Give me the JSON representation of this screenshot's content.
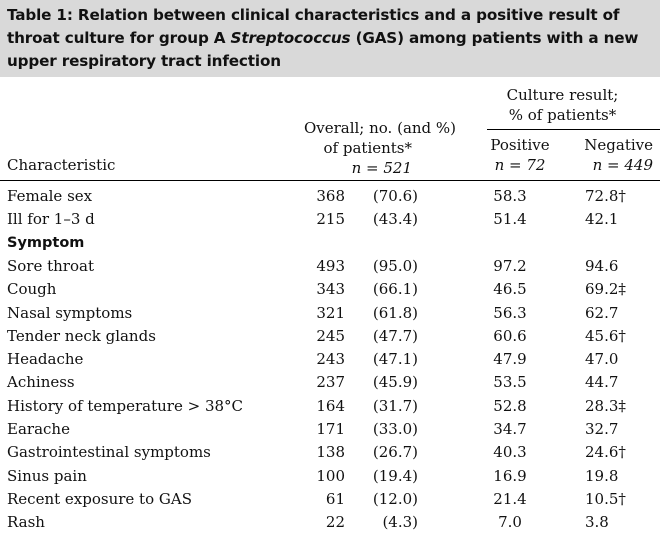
{
  "caption": {
    "part1": "Table 1: Relation between clinical characteristics and a positive result of throat culture for group A ",
    "italic": "Streptococcus",
    "part2": " (GAS) among patients with a new upper respiratory tract infection"
  },
  "header": {
    "characteristic": "Characteristic",
    "overall_line1": "Overall; no. (and %)",
    "overall_line2": "of patients*",
    "overall_n": "n = 521",
    "culture_line1": "Culture result;",
    "culture_line2": "% of patients*",
    "positive": "Positive",
    "positive_n": "n = 72",
    "negative": "Negative",
    "negative_n": "n = 449"
  },
  "rows": [
    {
      "label": "Female sex",
      "n": "368",
      "pct": "(70.6)",
      "pos": "58.3",
      "neg": "72.8†",
      "bold": false
    },
    {
      "label": "Ill for 1–3 d",
      "n": "215",
      "pct": "(43.4)",
      "pos": "51.4",
      "neg": "42.1",
      "bold": false
    },
    {
      "label": "Symptom",
      "n": "",
      "pct": "",
      "pos": "",
      "neg": "",
      "bold": true
    },
    {
      "label": "Sore throat",
      "n": "493",
      "pct": "(95.0)",
      "pos": "97.2",
      "neg": "94.6",
      "bold": false
    },
    {
      "label": "Cough",
      "n": "343",
      "pct": "(66.1)",
      "pos": "46.5",
      "neg": "69.2‡",
      "bold": false
    },
    {
      "label": "Nasal symptoms",
      "n": "321",
      "pct": "(61.8)",
      "pos": "56.3",
      "neg": "62.7",
      "bold": false
    },
    {
      "label": "Tender neck glands",
      "n": "245",
      "pct": "(47.7)",
      "pos": "60.6",
      "neg": "45.6†",
      "bold": false
    },
    {
      "label": "Headache",
      "n": "243",
      "pct": "(47.1)",
      "pos": "47.9",
      "neg": "47.0",
      "bold": false
    },
    {
      "label": "Achiness",
      "n": "237",
      "pct": "(45.9)",
      "pos": "53.5",
      "neg": "44.7",
      "bold": false
    },
    {
      "label": "History of temperature > 38°C",
      "n": "164",
      "pct": "(31.7)",
      "pos": "52.8",
      "neg": "28.3‡",
      "bold": false
    },
    {
      "label": "Earache",
      "n": "171",
      "pct": "(33.0)",
      "pos": "34.7",
      "neg": "32.7",
      "bold": false
    },
    {
      "label": "Gastrointestinal symptoms",
      "n": "138",
      "pct": "(26.7)",
      "pos": "40.3",
      "neg": "24.6†",
      "bold": false
    },
    {
      "label": "Sinus pain",
      "n": "100",
      "pct": "(19.4)",
      "pos": "16.9",
      "neg": "19.8",
      "bold": false
    },
    {
      "label": "Recent exposure to GAS",
      "n": "61",
      "pct": "(12.0)",
      "pos": "21.4",
      "neg": "10.5†",
      "bold": false
    },
    {
      "label": "Rash",
      "n": "22",
      "pct": "(4.3)",
      "pos": "7.0",
      "neg": "3.8",
      "bold": false
    }
  ]
}
